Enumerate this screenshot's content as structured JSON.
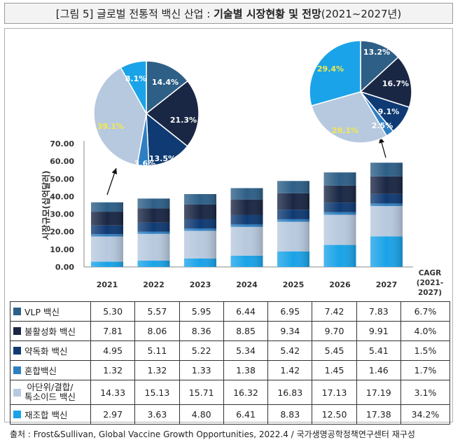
{
  "title": {
    "prefix": "[그림 5] 글로벌 전통적 백신 산업 :",
    "bold": "기술별 시장현황 및 전망",
    "suffix": "(2021∼2027년)"
  },
  "colors": {
    "VLP": "#2e5f87",
    "inactivated": "#1a2744",
    "attenuated": "#0f3a73",
    "mixed": "#2e7fc2",
    "subunit": "#b7c9de",
    "recombinant": "#1aa3e8"
  },
  "chart_data": [
    {
      "type": "bar",
      "stacked": true,
      "ylabel": "시장규모(십억달러)",
      "ylim": [
        0,
        70
      ],
      "yticks": [
        "0.00",
        "10.00",
        "20.00",
        "30.00",
        "40.00",
        "50.00",
        "60.00",
        "70.00"
      ],
      "categories": [
        "2021",
        "2022",
        "2023",
        "2024",
        "2025",
        "2026",
        "2027"
      ],
      "cagr_header": [
        "CAGR",
        "(2021-",
        "2027)"
      ],
      "series": [
        {
          "key": "recombinant",
          "name": "재조합 백신",
          "values": [
            2.97,
            3.63,
            4.8,
            6.41,
            8.83,
            12.5,
            17.38
          ],
          "cagr": "34.2%"
        },
        {
          "key": "subunit",
          "name": "아단위/결합/톡소이드 백신",
          "name_lines": [
            "아단위/결합/",
            "톡소이드 백신"
          ],
          "values": [
            14.33,
            15.13,
            15.71,
            16.32,
            16.83,
            17.13,
            17.19
          ],
          "cagr": "3.1%"
        },
        {
          "key": "mixed",
          "name": "혼합백신",
          "values": [
            1.32,
            1.32,
            1.33,
            1.38,
            1.42,
            1.45,
            1.46
          ],
          "cagr": "1.7%"
        },
        {
          "key": "attenuated",
          "name": "약독화 백신",
          "values": [
            4.95,
            5.11,
            5.22,
            5.34,
            5.42,
            5.45,
            5.41
          ],
          "cagr": "1.5%"
        },
        {
          "key": "inactivated",
          "name": "불활성화 백신",
          "values": [
            7.81,
            8.06,
            8.36,
            8.85,
            9.34,
            9.7,
            9.91
          ],
          "cagr": "4.0%"
        },
        {
          "key": "VLP",
          "name": "VLP 백신",
          "values": [
            5.3,
            5.57,
            5.95,
            6.44,
            6.95,
            7.42,
            7.83
          ],
          "cagr": "6.7%"
        }
      ],
      "table_order": [
        "VLP",
        "inactivated",
        "attenuated",
        "mixed",
        "subunit",
        "recombinant"
      ],
      "table_values": {
        "VLP": [
          "5.30",
          "5.57",
          "5.95",
          "6.44",
          "6.95",
          "7.42",
          "7.83"
        ],
        "inactivated": [
          "7.81",
          "8.06",
          "8.36",
          "8.85",
          "9.34",
          "9.70",
          "9.91"
        ],
        "attenuated": [
          "4.95",
          "5.11",
          "5.22",
          "5.34",
          "5.42",
          "5.45",
          "5.41"
        ],
        "mixed": [
          "1.32",
          "1.32",
          "1.33",
          "1.38",
          "1.42",
          "1.45",
          "1.46"
        ],
        "subunit": [
          "14.33",
          "15.13",
          "15.71",
          "16.32",
          "16.83",
          "17.13",
          "17.19"
        ],
        "recombinant": [
          "2.97",
          "3.63",
          "4.80",
          "6.41",
          "8.83",
          "12.50",
          "17.38"
        ]
      }
    },
    {
      "type": "pie",
      "title": "2021",
      "slices": [
        {
          "key": "VLP",
          "label": "14.4%",
          "value": 14.4
        },
        {
          "key": "inactivated",
          "label": "21.3%",
          "value": 21.3
        },
        {
          "key": "attenuated",
          "label": "13.5%",
          "value": 13.5
        },
        {
          "key": "mixed",
          "label": "3.6%",
          "value": 3.6
        },
        {
          "key": "subunit",
          "label": "39.1%",
          "value": 39.1
        },
        {
          "key": "recombinant",
          "label": "8.1%",
          "value": 8.1
        }
      ]
    },
    {
      "type": "pie",
      "title": "2027",
      "slices": [
        {
          "key": "VLP",
          "label": "13.2%",
          "value": 13.2
        },
        {
          "key": "inactivated",
          "label": "16.7%",
          "value": 16.7
        },
        {
          "key": "attenuated",
          "label": "9.1%",
          "value": 9.1
        },
        {
          "key": "mixed",
          "label": "2.5%",
          "value": 2.5
        },
        {
          "key": "subunit",
          "label": "29.1%",
          "value": 29.1
        },
        {
          "key": "recombinant",
          "label": "29.4%",
          "value": 29.4
        }
      ]
    }
  ],
  "source": "출처 :  Frost&Sullivan,  Global Vaccine Growth Opportunities, 2022.4 / 국가생명공학정책연구센터 재구성"
}
